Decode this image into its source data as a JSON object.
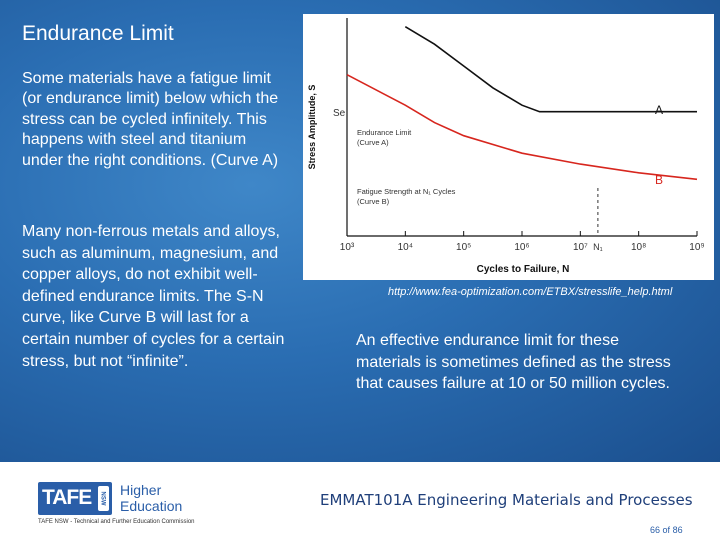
{
  "slide": {
    "title": "Endurance Limit",
    "paragraph1": "Some materials have a fatigue limit (or endurance limit) below which the stress can be cycled infinitely.  This happens with steel and titanium under the right conditions. (Curve A)",
    "paragraph2": "Many non-ferrous metals and alloys, such as aluminum, magnesium, and copper alloys, do not exhibit well-defined endurance limits. The S-N curve, like Curve B will last for a certain number of cycles for a certain stress, but not “infinite”.",
    "paragraph3": "An effective endurance limit for these materials is sometimes defined as the stress that causes failure at 10 or 50 million cycles.",
    "source_url": "http://www.fea-optimization.com/ETBX/stresslife_help.html"
  },
  "chart": {
    "ylabel": "Stress Amplitude, S",
    "xlabel": "Cycles to Failure, N",
    "se_label": "Se",
    "curve_a_label": "A",
    "curve_b_label": "B",
    "curve_a_legend_1": "Endurance Limit",
    "curve_a_legend_2": "(Curve A)",
    "curve_b_legend_1": "Fatigue Strength at N₁ Cycles",
    "curve_b_legend_2": "(Curve B)",
    "n1_label": "N₁",
    "curve_a_color": "#111111",
    "curve_b_color": "#d7261e",
    "x_ticks": [
      "10³",
      "10⁴",
      "10⁵",
      "10⁶",
      "10⁷",
      "10⁸",
      "10⁹"
    ]
  },
  "chart_data": {
    "type": "line",
    "title": "",
    "xlabel": "Cycles to Failure, N",
    "ylabel": "Stress Amplitude, S",
    "x_scale": "log",
    "x_ticks": [
      "10³",
      "10⁴",
      "10⁵",
      "10⁶",
      "10⁷",
      "10⁸",
      "10⁹"
    ],
    "xlim": [
      1000,
      1000000000
    ],
    "y_ticks": [],
    "series": [
      {
        "name": "A",
        "x": [
          10000,
          31623,
          100000,
          316228,
          1000000,
          2000000,
          10000000,
          100000000,
          1000000000
        ],
        "y": [
          0.96,
          0.88,
          0.78,
          0.68,
          0.6,
          0.57,
          0.57,
          0.57,
          0.57
        ]
      },
      {
        "name": "B",
        "x": [
          1000,
          10000,
          31623,
          100000,
          1000000,
          10000000,
          100000000,
          1000000000
        ],
        "y": [
          0.74,
          0.6,
          0.52,
          0.46,
          0.38,
          0.33,
          0.29,
          0.26
        ]
      }
    ],
    "grid": false,
    "legend": "none"
  },
  "footer": {
    "logo_text": "TAFE",
    "logo_badge": "NSW",
    "higher_line1": "Higher",
    "higher_line2": "Education",
    "commission": "TAFE NSW - Technical and Further Education Commission",
    "course": "EMMAT101A Engineering Materials and Processes",
    "page_current": "66",
    "page_of": "of",
    "page_total": "86"
  }
}
